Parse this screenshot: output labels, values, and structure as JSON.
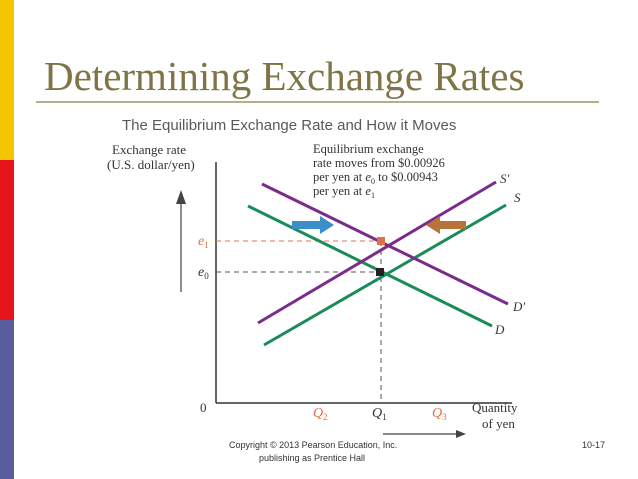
{
  "slide": {
    "title": "Determining Exchange Rates",
    "subtitle": "The Equilibrium Exchange Rate and How it Moves",
    "footer_line1": "Copyright © 2013 Pearson Education, Inc.",
    "footer_line2": "publishing as Prentice Hall",
    "page": "10-17"
  },
  "diagram": {
    "ylabel1": "Exchange rate",
    "ylabel2": "(U.S. dollar/yen)",
    "xlabel1": "Quantity",
    "xlabel2": "of yen",
    "origin": "0",
    "annot1": "Equilibrium exchange",
    "annot2": "rate moves from $0.00926",
    "annot3_pre": "per yen at ",
    "annot3_e": "e",
    "annot3_sub": "0",
    "annot3_post": " to $0.00943",
    "annot4_pre": "per yen at ",
    "annot4_e": "e",
    "annot4_sub": "1",
    "e1": "e",
    "e1_sub": "1",
    "e0": "e",
    "e0_sub": "0",
    "q1": "Q",
    "q1_sub": "1",
    "q2": "Q",
    "q2_sub": "2",
    "q3": "Q",
    "q3_sub": "3",
    "S": "S",
    "S_prime": "S′",
    "D": "D",
    "D_prime": "D′"
  },
  "colors": {
    "bar_yellow": "#f5c400",
    "bar_red": "#e8141c",
    "bar_purple": "#5b5c9e",
    "green_curve": "#1a8c5a",
    "purple_curve": "#7a2b8c",
    "highlight_orange": "#e07048",
    "arrow_blue": "#3a8fc8",
    "arrow_brown": "#b8733a"
  }
}
